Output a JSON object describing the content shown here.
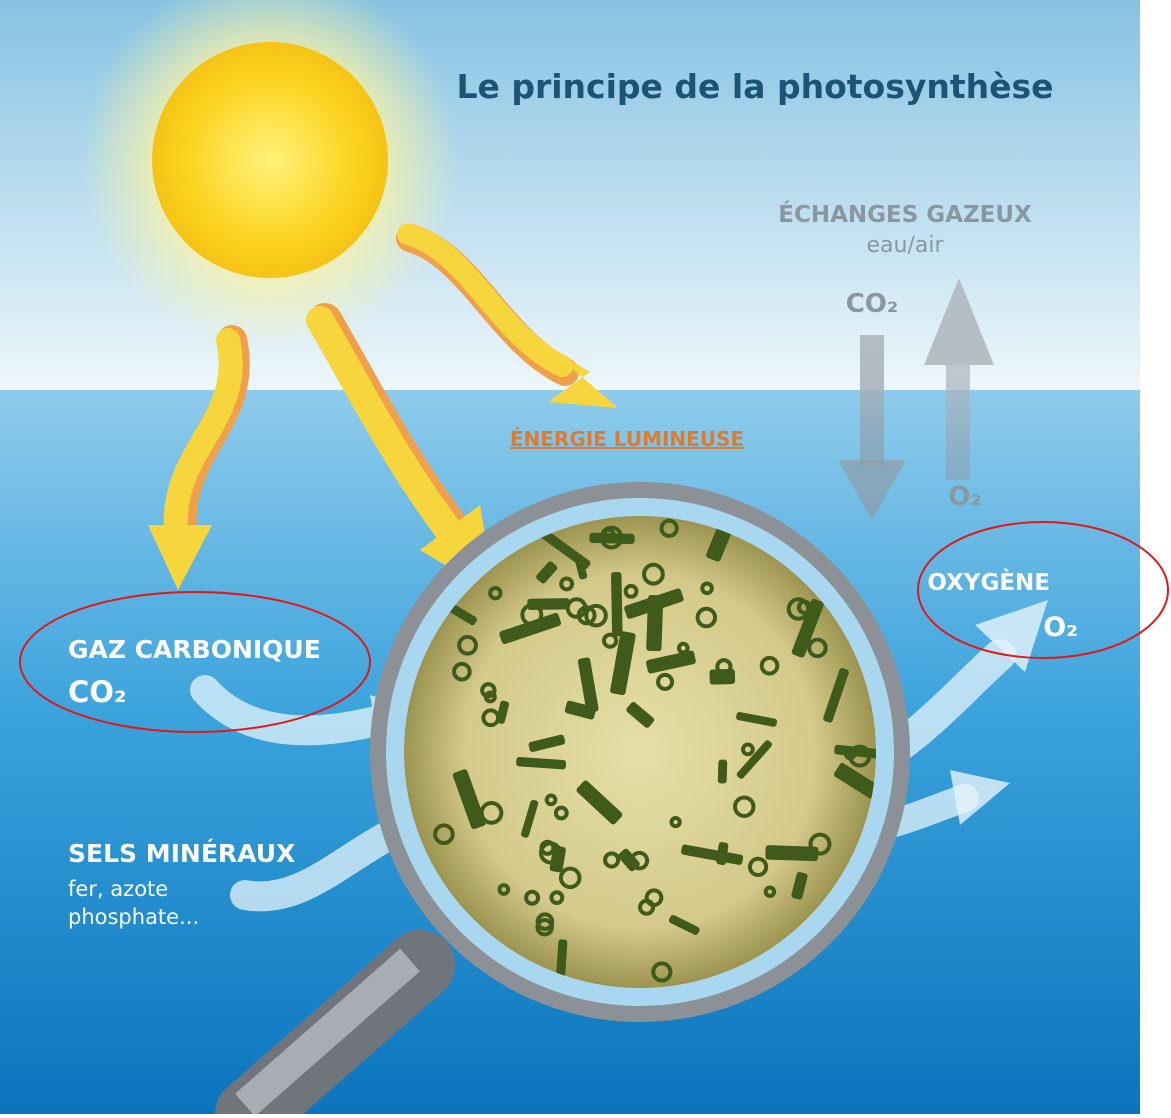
{
  "header": {
    "title": "Le principe de la photosynthèse"
  },
  "exchange": {
    "title": "ÉCHANGES GAZEUX",
    "subtitle": "eau/air",
    "co2": "CO₂",
    "o2": "O₂"
  },
  "energy": {
    "label": "ÉNERGIE LUMINEUSE"
  },
  "carbon": {
    "title": "GAZ CARBONIQUE",
    "formula": "CO₂"
  },
  "oxygen": {
    "title": "OXYGÈNE",
    "formula": "O₂"
  },
  "minerals": {
    "title": "SELS MINÉRAUX",
    "line1": "fer, azote",
    "line2": "phosphate..."
  }
}
